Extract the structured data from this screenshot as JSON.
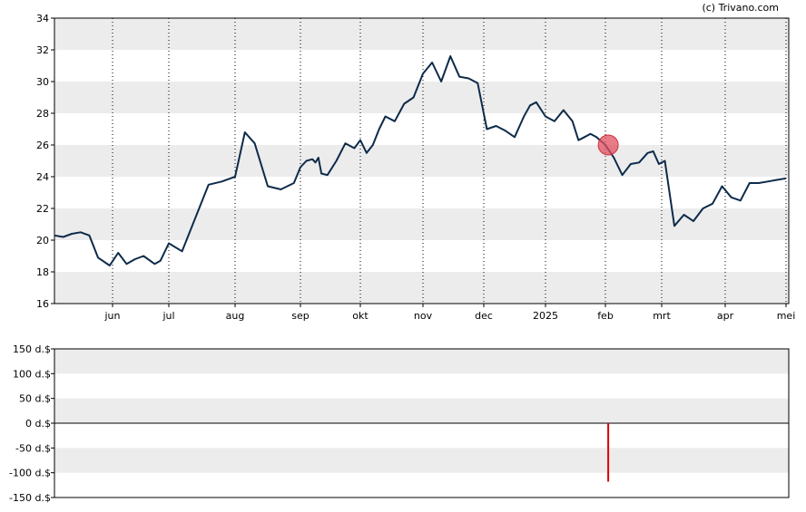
{
  "credit": "(c) Trivano.com",
  "chart_data": [
    {
      "type": "line",
      "title": "",
      "xlabel": "",
      "ylabel": "",
      "ylim": [
        16,
        34
      ],
      "yticks": [
        16,
        18,
        20,
        22,
        24,
        26,
        28,
        30,
        32,
        34
      ],
      "grid": "alternating horizontal bands, dotted vertical lines at month starts",
      "x_tick_labels": [
        "jun",
        "jul",
        "aug",
        "sep",
        "okt",
        "nov",
        "dec",
        "2025",
        "feb",
        "mrt",
        "apr",
        "mei"
      ],
      "line_color": "#0d2b4a",
      "marker_color": "#e05060",
      "series": [
        {
          "x": [
            0,
            0.15,
            0.3,
            0.45,
            0.6,
            0.75,
            0.95,
            1.1,
            1.25,
            1.4,
            1.55,
            1.75,
            1.85,
            2.0,
            2.2,
            2.4,
            2.6,
            2.8,
            3.0,
            3.15,
            3.3,
            3.5,
            3.7,
            3.9,
            4.0,
            4.1,
            4.2,
            4.25,
            4.3,
            4.35,
            4.45,
            4.6,
            4.75,
            4.9,
            5.0,
            5.1,
            5.2,
            5.3,
            5.4,
            5.55,
            5.7,
            5.85,
            6.0,
            6.15,
            6.3,
            6.45,
            6.6,
            6.75,
            6.9,
            7.05,
            7.2,
            7.35,
            7.5,
            7.65,
            7.75,
            7.85,
            8.0,
            8.15,
            8.3,
            8.45,
            8.55,
            8.65,
            8.75,
            8.85,
            9.0,
            9.15,
            9.3,
            9.45,
            9.6,
            9.75,
            9.85,
            9.95,
            10.05,
            10.2,
            10.35,
            10.5,
            10.65,
            10.8,
            10.95,
            11.1,
            11.25,
            11.4,
            11.55,
            11.7,
            11.85,
            12.0
          ],
          "y": [
            20.3,
            20.2,
            20.4,
            20.5,
            20.3,
            18.9,
            18.4,
            19.2,
            18.5,
            18.8,
            19.0,
            18.5,
            18.7,
            19.8,
            19.3,
            21.4,
            23.5,
            23.7,
            24.0,
            26.8,
            26.1,
            23.4,
            23.2,
            23.6,
            24.6,
            25.0,
            25.1,
            24.9,
            25.2,
            24.2,
            24.1,
            25.0,
            26.1,
            25.8,
            26.3,
            25.5,
            26.0,
            27.0,
            27.8,
            27.5,
            28.6,
            29.0,
            30.5,
            31.2,
            30.0,
            31.6,
            30.3,
            30.2,
            29.9,
            27.0,
            27.2,
            26.9,
            26.5,
            27.8,
            28.5,
            28.7,
            27.8,
            27.5,
            28.2,
            27.5,
            26.3,
            26.5,
            26.7,
            26.5,
            26.0,
            25.2,
            24.1,
            24.8,
            24.9,
            25.5,
            25.6,
            24.8,
            25.0,
            20.9,
            21.6,
            21.2,
            22.0,
            22.3,
            23.4,
            22.7,
            22.5,
            23.6,
            23.6,
            23.7,
            23.8,
            23.9
          ]
        }
      ],
      "marker_point": {
        "x": 9.05,
        "y": 26.0
      }
    },
    {
      "type": "bar",
      "title": "",
      "xlabel": "",
      "ylabel": "",
      "ylim": [
        -150,
        150
      ],
      "ytick_labels": [
        "150 d.$",
        "100 d.$",
        "50 d.$",
        "0 d.$",
        "-50 d.$",
        "-100 d.$",
        "-150 d.$"
      ],
      "yticks": [
        150,
        100,
        50,
        0,
        -50,
        -100,
        -150
      ],
      "bar_color": "#dd0000",
      "bars": [
        {
          "x": 9.05,
          "value": -118
        }
      ]
    }
  ]
}
